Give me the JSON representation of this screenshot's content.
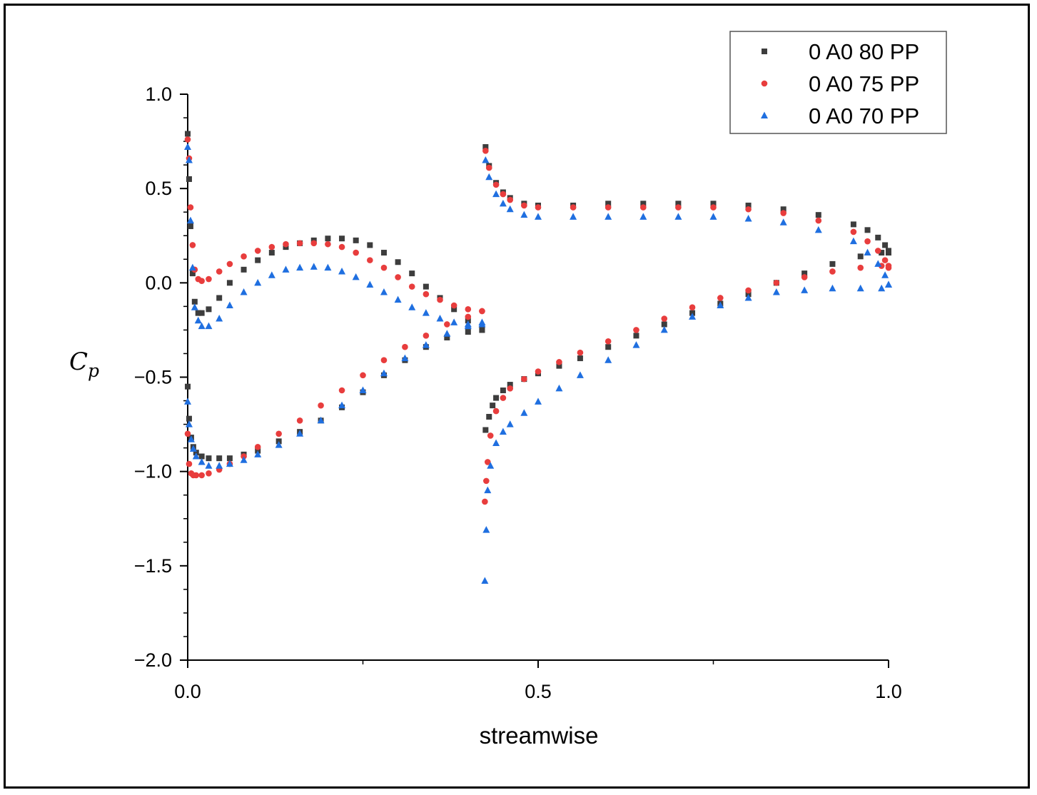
{
  "chart_data": {
    "type": "scatter",
    "title": "",
    "xlabel": "streamwise",
    "ylabel_base": "C",
    "ylabel_sub": "p",
    "xlim": [
      0.0,
      1.0
    ],
    "ylim": [
      -2.0,
      1.0
    ],
    "xticks": [
      0.0,
      0.5,
      1.0
    ],
    "xtick_labels": [
      "0.0",
      "0.5",
      "1.0"
    ],
    "yticks": [
      1.0,
      0.5,
      0.0,
      -0.5,
      -1.0,
      -1.5,
      -2.0
    ],
    "ytick_labels": [
      "1.0",
      "0.5",
      "0.0",
      "−0.5",
      "−1.0",
      "−1.5",
      "−2.0"
    ],
    "grid": false,
    "legend_position": "top-right",
    "series": [
      {
        "name": "0 A0 80 PP",
        "marker": "square",
        "color": "#3d3d3d",
        "segments": [
          {
            "x": [
              0.0,
              0.002,
              0.004,
              0.007,
              0.01,
              0.015,
              0.02,
              0.03,
              0.045,
              0.06,
              0.08,
              0.1,
              0.12,
              0.14,
              0.16,
              0.18,
              0.2,
              0.22,
              0.24,
              0.26,
              0.28,
              0.3,
              0.32,
              0.34,
              0.36,
              0.38,
              0.4,
              0.42
            ],
            "y": [
              0.79,
              0.55,
              0.3,
              0.05,
              -0.1,
              -0.16,
              -0.16,
              -0.14,
              -0.08,
              0.0,
              0.07,
              0.12,
              0.16,
              0.19,
              0.21,
              0.225,
              0.235,
              0.235,
              0.225,
              0.2,
              0.16,
              0.11,
              0.05,
              -0.02,
              -0.08,
              -0.14,
              -0.2,
              -0.25
            ]
          },
          {
            "x": [
              0.0,
              0.002,
              0.005,
              0.008,
              0.012,
              0.02,
              0.03,
              0.045,
              0.06,
              0.08,
              0.1,
              0.13,
              0.16,
              0.19,
              0.22,
              0.25,
              0.28,
              0.31,
              0.34,
              0.37,
              0.4,
              0.42
            ],
            "y": [
              -0.55,
              -0.72,
              -0.82,
              -0.87,
              -0.9,
              -0.92,
              -0.93,
              -0.93,
              -0.93,
              -0.91,
              -0.89,
              -0.84,
              -0.79,
              -0.73,
              -0.66,
              -0.58,
              -0.49,
              -0.41,
              -0.34,
              -0.29,
              -0.26,
              -0.25
            ]
          },
          {
            "x": [
              0.425,
              0.43,
              0.44,
              0.45,
              0.46,
              0.48,
              0.5,
              0.55,
              0.6,
              0.65,
              0.7,
              0.75,
              0.8,
              0.85,
              0.9,
              0.95,
              0.97,
              0.985,
              0.995,
              1.0
            ],
            "y": [
              0.72,
              0.62,
              0.53,
              0.48,
              0.45,
              0.42,
              0.41,
              0.41,
              0.42,
              0.42,
              0.42,
              0.42,
              0.41,
              0.39,
              0.36,
              0.31,
              0.28,
              0.24,
              0.2,
              0.16
            ]
          },
          {
            "x": [
              0.425,
              0.43,
              0.435,
              0.44,
              0.45,
              0.46,
              0.48,
              0.5,
              0.53,
              0.56,
              0.6,
              0.64,
              0.68,
              0.72,
              0.76,
              0.8,
              0.84,
              0.88,
              0.92,
              0.96,
              0.99,
              1.0
            ],
            "y": [
              -0.78,
              -0.71,
              -0.65,
              -0.61,
              -0.57,
              -0.54,
              -0.51,
              -0.48,
              -0.44,
              -0.4,
              -0.34,
              -0.28,
              -0.22,
              -0.16,
              -0.11,
              -0.06,
              0.0,
              0.05,
              0.1,
              0.14,
              0.16,
              0.17
            ]
          }
        ]
      },
      {
        "name": "0 A0 75 PP",
        "marker": "circle",
        "color": "#e83d3d",
        "segments": [
          {
            "x": [
              0.0,
              0.002,
              0.004,
              0.007,
              0.01,
              0.015,
              0.02,
              0.03,
              0.045,
              0.06,
              0.08,
              0.1,
              0.12,
              0.14,
              0.16,
              0.18,
              0.2,
              0.22,
              0.24,
              0.26,
              0.28,
              0.3,
              0.32,
              0.34,
              0.36,
              0.38,
              0.4,
              0.42
            ],
            "y": [
              0.76,
              0.66,
              0.4,
              0.2,
              0.07,
              0.02,
              0.01,
              0.02,
              0.06,
              0.1,
              0.14,
              0.17,
              0.19,
              0.205,
              0.21,
              0.21,
              0.205,
              0.19,
              0.16,
              0.12,
              0.08,
              0.03,
              -0.02,
              -0.06,
              -0.09,
              -0.12,
              -0.14,
              -0.15
            ]
          },
          {
            "x": [
              0.0,
              0.002,
              0.005,
              0.008,
              0.012,
              0.02,
              0.03,
              0.045,
              0.06,
              0.08,
              0.1,
              0.13,
              0.16,
              0.19,
              0.22,
              0.25,
              0.28,
              0.31,
              0.34,
              0.37,
              0.4,
              0.42
            ],
            "y": [
              -0.8,
              -0.96,
              -1.01,
              -1.02,
              -1.02,
              -1.02,
              -1.01,
              -0.99,
              -0.96,
              -0.92,
              -0.87,
              -0.8,
              -0.73,
              -0.65,
              -0.57,
              -0.49,
              -0.41,
              -0.34,
              -0.28,
              -0.22,
              -0.18,
              -0.15
            ]
          },
          {
            "x": [
              0.425,
              0.43,
              0.44,
              0.45,
              0.46,
              0.48,
              0.5,
              0.55,
              0.6,
              0.65,
              0.7,
              0.75,
              0.8,
              0.85,
              0.9,
              0.95,
              0.97,
              0.985,
              0.995,
              1.0
            ],
            "y": [
              0.7,
              0.61,
              0.52,
              0.47,
              0.44,
              0.41,
              0.4,
              0.4,
              0.4,
              0.4,
              0.4,
              0.4,
              0.39,
              0.37,
              0.33,
              0.27,
              0.22,
              0.17,
              0.12,
              0.08
            ]
          },
          {
            "x": [
              0.424,
              0.426,
              0.428,
              0.432,
              0.44,
              0.45,
              0.46,
              0.48,
              0.5,
              0.53,
              0.56,
              0.6,
              0.64,
              0.68,
              0.72,
              0.76,
              0.8,
              0.84,
              0.88,
              0.92,
              0.96,
              0.99,
              1.0
            ],
            "y": [
              -1.16,
              -1.05,
              -0.95,
              -0.81,
              -0.68,
              -0.61,
              -0.56,
              -0.51,
              -0.47,
              -0.42,
              -0.37,
              -0.31,
              -0.25,
              -0.19,
              -0.13,
              -0.08,
              -0.04,
              0.0,
              0.03,
              0.06,
              0.08,
              0.09,
              0.09
            ]
          }
        ]
      },
      {
        "name": "0 A0 70 PP",
        "marker": "triangle",
        "color": "#1f6fe0",
        "segments": [
          {
            "x": [
              0.0,
              0.002,
              0.004,
              0.007,
              0.01,
              0.015,
              0.02,
              0.03,
              0.045,
              0.06,
              0.08,
              0.1,
              0.12,
              0.14,
              0.16,
              0.18,
              0.2,
              0.22,
              0.24,
              0.26,
              0.28,
              0.3,
              0.32,
              0.34,
              0.36,
              0.38,
              0.4,
              0.42
            ],
            "y": [
              0.72,
              0.65,
              0.33,
              0.08,
              -0.13,
              -0.2,
              -0.23,
              -0.23,
              -0.19,
              -0.12,
              -0.05,
              0.0,
              0.04,
              0.07,
              0.08,
              0.085,
              0.08,
              0.06,
              0.03,
              -0.01,
              -0.05,
              -0.09,
              -0.13,
              -0.16,
              -0.19,
              -0.21,
              -0.22,
              -0.22
            ]
          },
          {
            "x": [
              0.0,
              0.002,
              0.005,
              0.008,
              0.012,
              0.02,
              0.03,
              0.045,
              0.06,
              0.08,
              0.1,
              0.13,
              0.16,
              0.19,
              0.22,
              0.25,
              0.28,
              0.31,
              0.34,
              0.37,
              0.4,
              0.42
            ],
            "y": [
              -0.63,
              -0.75,
              -0.83,
              -0.88,
              -0.92,
              -0.95,
              -0.97,
              -0.97,
              -0.96,
              -0.94,
              -0.91,
              -0.86,
              -0.8,
              -0.73,
              -0.65,
              -0.57,
              -0.48,
              -0.4,
              -0.33,
              -0.27,
              -0.23,
              -0.21
            ]
          },
          {
            "x": [
              0.425,
              0.43,
              0.44,
              0.45,
              0.46,
              0.48,
              0.5,
              0.55,
              0.6,
              0.65,
              0.7,
              0.75,
              0.8,
              0.85,
              0.9,
              0.95,
              0.97,
              0.985,
              0.995,
              1.0
            ],
            "y": [
              0.65,
              0.56,
              0.47,
              0.42,
              0.39,
              0.36,
              0.35,
              0.35,
              0.35,
              0.35,
              0.35,
              0.35,
              0.34,
              0.32,
              0.28,
              0.22,
              0.16,
              0.1,
              0.04,
              -0.01
            ]
          },
          {
            "x": [
              0.424,
              0.426,
              0.428,
              0.432,
              0.44,
              0.45,
              0.46,
              0.48,
              0.5,
              0.53,
              0.56,
              0.6,
              0.64,
              0.68,
              0.72,
              0.76,
              0.8,
              0.84,
              0.88,
              0.92,
              0.96,
              0.99,
              1.0
            ],
            "y": [
              -1.58,
              -1.31,
              -1.1,
              -0.97,
              -0.85,
              -0.79,
              -0.75,
              -0.69,
              -0.63,
              -0.56,
              -0.49,
              -0.41,
              -0.33,
              -0.25,
              -0.18,
              -0.12,
              -0.08,
              -0.05,
              -0.04,
              -0.03,
              -0.03,
              -0.03,
              -0.01
            ]
          }
        ]
      }
    ]
  }
}
